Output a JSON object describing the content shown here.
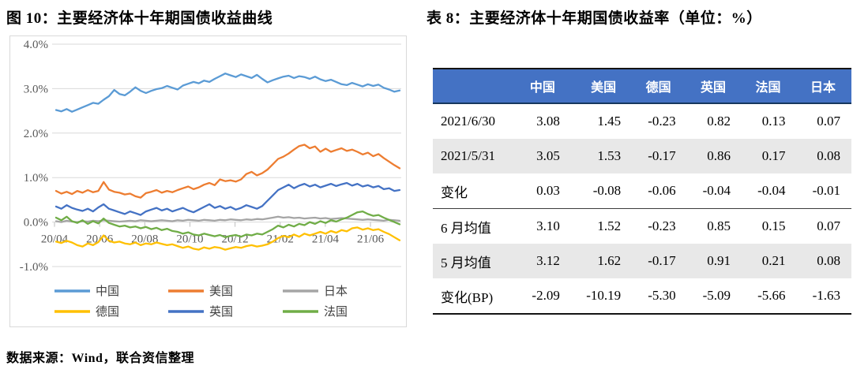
{
  "figure": {
    "title": "图 10：主要经济体十年期国债收益曲线",
    "source_note": "数据来源：Wind，联合资信整理"
  },
  "table_section": {
    "title": "表 8：主要经济体十年期国债收益率（单位：%）"
  },
  "chart_data": {
    "type": "line",
    "title": "主要经济体十年期国债收益曲线",
    "grid": true,
    "legend_position": "bottom",
    "ylim": [
      -1.35,
      4.1
    ],
    "y_tick_labels": [
      "4.0%",
      "3.0%",
      "2.0%",
      "1.0%",
      "0.0%",
      "-1.0%"
    ],
    "y_tick_values": [
      4,
      3,
      2,
      1,
      0,
      -1
    ],
    "x_tick_labels": [
      "20/04",
      "20/06",
      "20/08",
      "20/10",
      "20/12",
      "21/02",
      "21/04",
      "21/06"
    ],
    "series": [
      {
        "name": "中国",
        "key": "china",
        "color": "#5B9BD5",
        "values": [
          2.52,
          2.49,
          2.54,
          2.48,
          2.53,
          2.58,
          2.63,
          2.68,
          2.66,
          2.75,
          2.83,
          2.97,
          2.88,
          2.85,
          2.93,
          3.03,
          2.95,
          2.9,
          2.95,
          2.99,
          3.01,
          3.06,
          3.02,
          2.98,
          3.07,
          3.11,
          3.15,
          3.12,
          3.18,
          3.15,
          3.22,
          3.28,
          3.34,
          3.3,
          3.26,
          3.32,
          3.28,
          3.24,
          3.31,
          3.22,
          3.14,
          3.19,
          3.23,
          3.27,
          3.29,
          3.24,
          3.28,
          3.26,
          3.22,
          3.27,
          3.21,
          3.17,
          3.2,
          3.15,
          3.1,
          3.08,
          3.13,
          3.09,
          3.05,
          3.1,
          3.06,
          3.09,
          3.02,
          2.98,
          2.93,
          2.96
        ]
      },
      {
        "name": "美国",
        "key": "usa",
        "color": "#ED7D31",
        "values": [
          0.7,
          0.64,
          0.68,
          0.63,
          0.7,
          0.66,
          0.72,
          0.67,
          0.7,
          0.9,
          0.73,
          0.68,
          0.66,
          0.62,
          0.64,
          0.58,
          0.55,
          0.65,
          0.68,
          0.72,
          0.66,
          0.7,
          0.67,
          0.72,
          0.76,
          0.8,
          0.74,
          0.78,
          0.84,
          0.88,
          0.83,
          0.96,
          0.92,
          0.94,
          0.91,
          0.96,
          1.08,
          1.13,
          1.05,
          1.1,
          1.18,
          1.3,
          1.42,
          1.47,
          1.54,
          1.63,
          1.71,
          1.74,
          1.66,
          1.7,
          1.58,
          1.65,
          1.58,
          1.62,
          1.66,
          1.6,
          1.63,
          1.58,
          1.52,
          1.56,
          1.48,
          1.53,
          1.44,
          1.36,
          1.28,
          1.21
        ]
      },
      {
        "name": "日本",
        "key": "japan",
        "color": "#A5A5A5",
        "values": [
          0.02,
          0.0,
          0.03,
          0.01,
          0.0,
          0.02,
          0.01,
          0.03,
          0.02,
          0.04,
          0.03,
          0.02,
          0.01,
          0.02,
          0.03,
          0.02,
          0.04,
          0.03,
          0.02,
          0.03,
          0.04,
          0.03,
          0.02,
          0.04,
          0.03,
          0.05,
          0.04,
          0.03,
          0.05,
          0.04,
          0.03,
          0.05,
          0.04,
          0.06,
          0.05,
          0.04,
          0.06,
          0.05,
          0.07,
          0.06,
          0.08,
          0.1,
          0.12,
          0.1,
          0.11,
          0.09,
          0.1,
          0.08,
          0.09,
          0.1,
          0.08,
          0.09,
          0.07,
          0.08,
          0.09,
          0.08,
          0.07,
          0.06,
          0.05,
          0.06,
          0.05,
          0.04,
          0.03,
          0.05,
          0.04,
          0.03
        ]
      },
      {
        "name": "德国",
        "key": "germany",
        "color": "#FFC000",
        "values": [
          -0.44,
          -0.47,
          -0.42,
          -0.46,
          -0.52,
          -0.55,
          -0.48,
          -0.52,
          -0.45,
          -0.3,
          -0.42,
          -0.46,
          -0.44,
          -0.48,
          -0.5,
          -0.46,
          -0.52,
          -0.48,
          -0.5,
          -0.46,
          -0.49,
          -0.52,
          -0.5,
          -0.54,
          -0.58,
          -0.55,
          -0.6,
          -0.62,
          -0.57,
          -0.6,
          -0.56,
          -0.58,
          -0.62,
          -0.59,
          -0.56,
          -0.58,
          -0.54,
          -0.52,
          -0.55,
          -0.53,
          -0.5,
          -0.44,
          -0.36,
          -0.31,
          -0.34,
          -0.28,
          -0.33,
          -0.26,
          -0.3,
          -0.26,
          -0.22,
          -0.26,
          -0.2,
          -0.24,
          -0.18,
          -0.21,
          -0.14,
          -0.12,
          -0.17,
          -0.14,
          -0.18,
          -0.16,
          -0.22,
          -0.27,
          -0.34,
          -0.41
        ]
      },
      {
        "name": "英国",
        "key": "uk",
        "color": "#4472C4",
        "values": [
          0.35,
          0.3,
          0.38,
          0.32,
          0.28,
          0.25,
          0.3,
          0.24,
          0.33,
          0.4,
          0.3,
          0.26,
          0.22,
          0.18,
          0.24,
          0.2,
          0.16,
          0.24,
          0.28,
          0.32,
          0.26,
          0.3,
          0.24,
          0.28,
          0.32,
          0.26,
          0.22,
          0.28,
          0.34,
          0.4,
          0.32,
          0.36,
          0.3,
          0.34,
          0.28,
          0.32,
          0.38,
          0.34,
          0.3,
          0.36,
          0.48,
          0.6,
          0.72,
          0.78,
          0.84,
          0.76,
          0.82,
          0.86,
          0.8,
          0.84,
          0.78,
          0.82,
          0.86,
          0.81,
          0.85,
          0.88,
          0.82,
          0.86,
          0.8,
          0.83,
          0.78,
          0.81,
          0.74,
          0.76,
          0.7,
          0.72
        ]
      },
      {
        "name": "法国",
        "key": "france",
        "color": "#70AD47",
        "values": [
          0.1,
          0.04,
          0.12,
          0.02,
          -0.02,
          0.04,
          -0.04,
          0.02,
          -0.03,
          0.08,
          -0.02,
          -0.06,
          -0.1,
          -0.08,
          -0.12,
          -0.1,
          -0.14,
          -0.11,
          -0.16,
          -0.13,
          -0.18,
          -0.15,
          -0.2,
          -0.22,
          -0.26,
          -0.23,
          -0.28,
          -0.3,
          -0.26,
          -0.29,
          -0.32,
          -0.29,
          -0.34,
          -0.31,
          -0.29,
          -0.33,
          -0.28,
          -0.3,
          -0.26,
          -0.28,
          -0.22,
          -0.16,
          -0.08,
          -0.12,
          -0.06,
          -0.1,
          -0.04,
          -0.07,
          0.0,
          -0.04,
          0.02,
          -0.02,
          0.04,
          0.01,
          0.06,
          0.1,
          0.16,
          0.22,
          0.24,
          0.18,
          0.14,
          0.16,
          0.1,
          0.05,
          0.0,
          -0.05
        ]
      }
    ]
  },
  "table": {
    "header_bg": "#4472C4",
    "header_text_color": "#FFFFFF",
    "stripe_bg": "#E8E8E8",
    "columns": [
      "",
      "中国",
      "美国",
      "德国",
      "英国",
      "法国",
      "日本"
    ],
    "rows": [
      {
        "label": "2021/6/30",
        "values": [
          "3.08",
          "1.45",
          "-0.23",
          "0.82",
          "0.13",
          "0.07"
        ],
        "shaded": false,
        "rule_below": false
      },
      {
        "label": "2021/5/31",
        "values": [
          "3.05",
          "1.53",
          "-0.17",
          "0.86",
          "0.17",
          "0.08"
        ],
        "shaded": true,
        "rule_below": false
      },
      {
        "label": "变化",
        "values": [
          "0.03",
          "-0.08",
          "-0.06",
          "-0.04",
          "-0.04",
          "-0.01"
        ],
        "shaded": false,
        "rule_below": true
      },
      {
        "label": "6 月均值",
        "values": [
          "3.10",
          "1.52",
          "-0.23",
          "0.85",
          "0.15",
          "0.07"
        ],
        "shaded": false,
        "rule_below": false
      },
      {
        "label": "5 月均值",
        "values": [
          "3.12",
          "1.62",
          "-0.17",
          "0.91",
          "0.21",
          "0.08"
        ],
        "shaded": true,
        "rule_below": false
      },
      {
        "label": "变化(BP)",
        "values": [
          "-2.09",
          "-10.19",
          "-5.30",
          "-5.09",
          "-5.66",
          "-1.63"
        ],
        "shaded": false,
        "rule_below": false
      }
    ]
  }
}
